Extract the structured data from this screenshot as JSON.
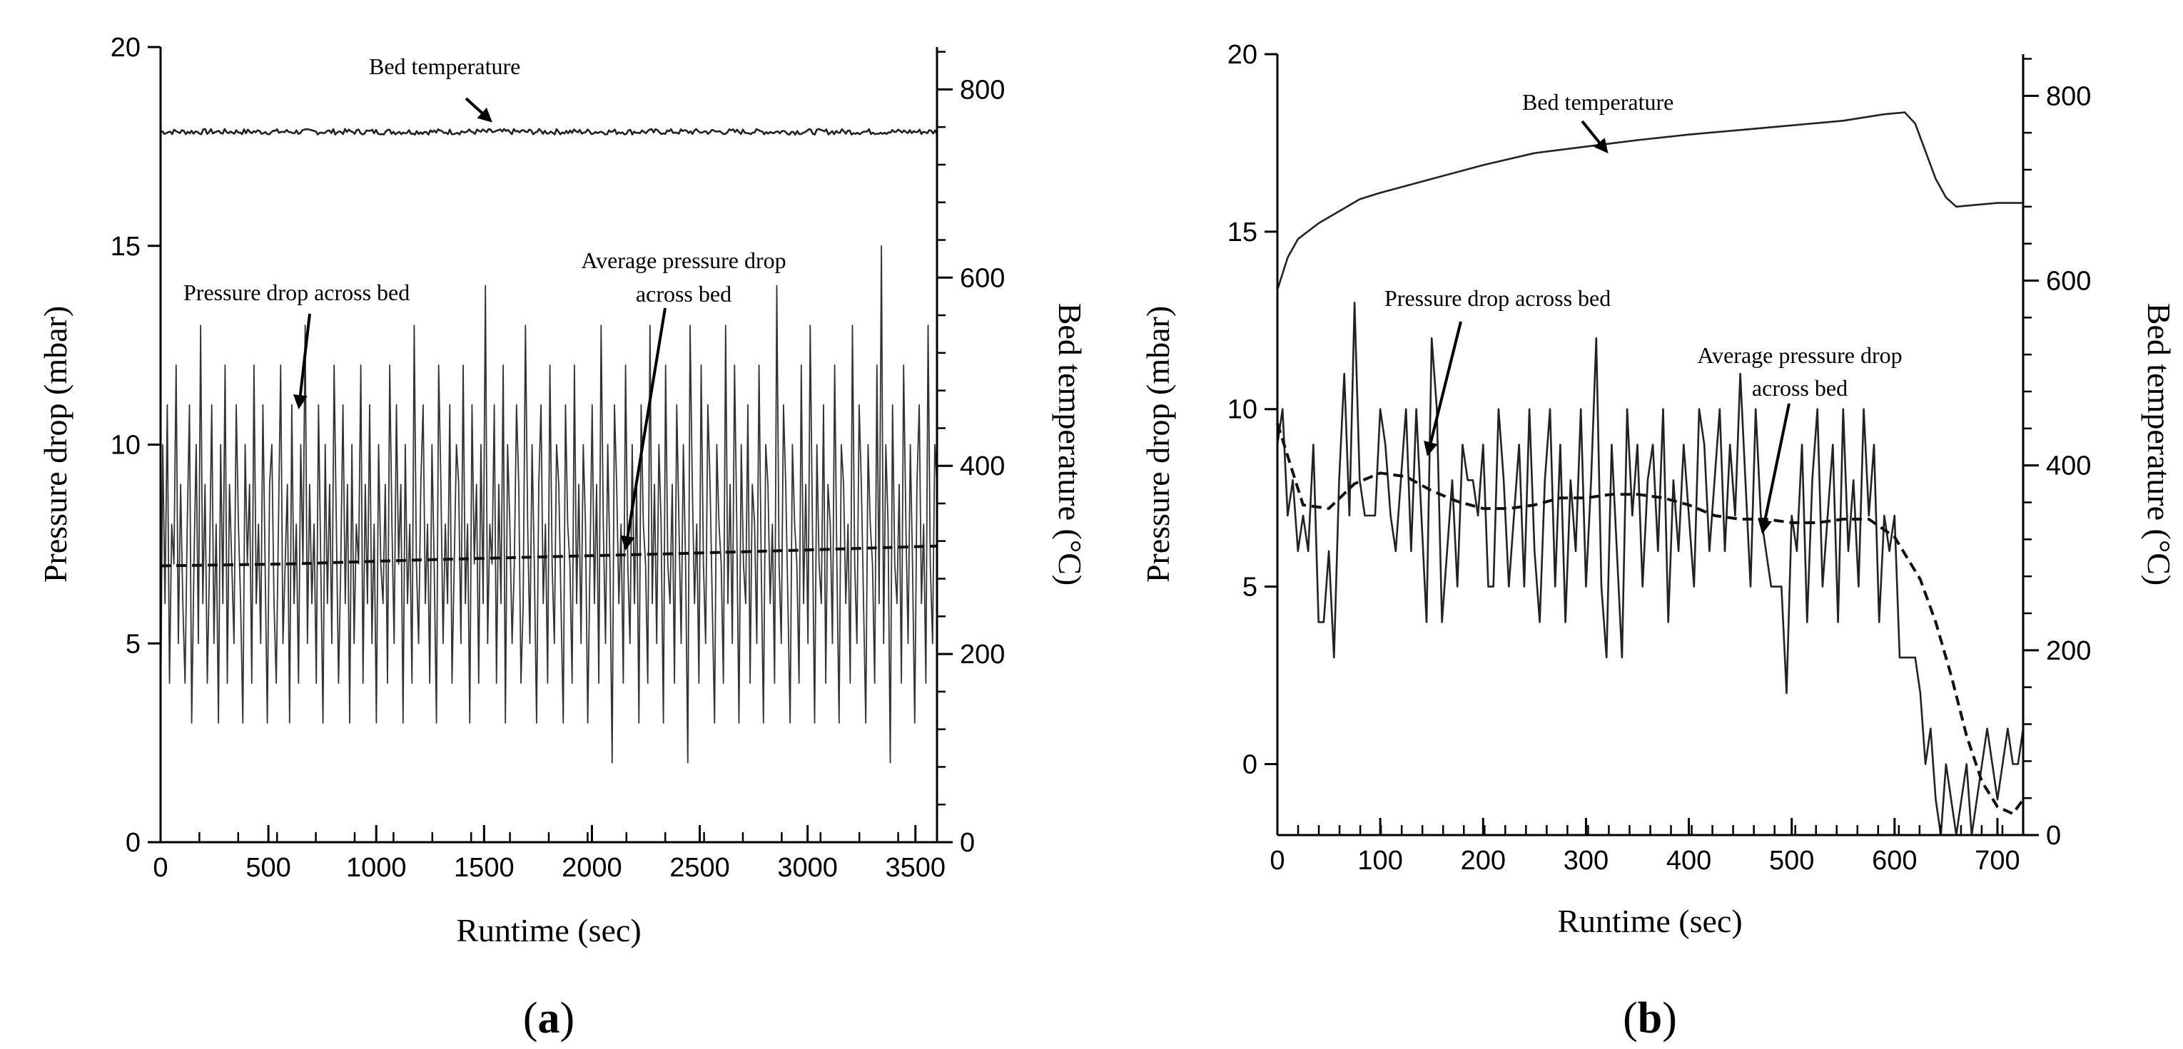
{
  "chart_data": [
    {
      "panel": "a",
      "panel_label": "a",
      "type": "line",
      "xlabel": "Runtime (sec)",
      "ylabel_left": "Pressure drop (mbar)",
      "ylabel_right": "Bed temperature (°C)",
      "xlim": [
        0,
        3600
      ],
      "ylim_left": [
        0,
        20
      ],
      "ylim_right": [
        0,
        845
      ],
      "xticks": [
        0,
        500,
        1000,
        1500,
        2000,
        2500,
        3000,
        3500
      ],
      "yticks_left": [
        0,
        5,
        10,
        15,
        20
      ],
      "yticks_right": [
        0,
        200,
        400,
        600,
        800
      ],
      "annotations": {
        "bed_temperature": "Bed temperature",
        "pressure_drop": "Pressure drop across bed",
        "average_line1": "Average pressure drop",
        "average_line2": "across bed"
      },
      "series": [
        {
          "name": "Bed temperature",
          "axis": "right",
          "style": "solid",
          "x": [
            0,
            3600
          ],
          "y": [
            755,
            755
          ],
          "noise_amplitude": 3
        },
        {
          "name": "Pressure drop across bed",
          "axis": "left",
          "style": "solid",
          "values_per_second": 0.5,
          "x_start": 0,
          "x_end": 3600,
          "mean": 7.2,
          "min": 2,
          "max": 15,
          "samples": [
            3,
            10,
            6,
            11,
            4,
            8,
            7,
            12,
            5,
            9,
            6,
            4,
            8,
            11,
            3,
            7,
            10,
            5,
            13,
            6,
            9,
            4,
            7,
            11,
            5,
            8,
            3,
            10,
            6,
            12,
            4,
            9,
            7,
            5,
            11,
            8,
            6,
            3,
            10,
            7,
            9,
            4,
            12,
            6,
            8,
            5,
            11,
            7,
            3,
            9,
            10,
            6,
            4,
            8,
            12,
            5,
            7,
            9,
            3,
            11,
            6,
            8,
            4,
            10,
            7,
            13,
            5,
            9,
            6,
            8,
            4,
            11,
            7,
            3,
            10,
            6,
            9,
            5,
            12,
            8,
            4,
            7,
            11,
            6,
            9,
            3,
            10,
            5,
            8,
            7,
            12,
            4,
            9,
            6,
            11,
            5,
            8,
            3,
            10,
            7,
            6,
            9,
            4,
            12,
            8,
            5,
            11,
            7,
            9,
            3,
            10,
            6,
            8,
            4,
            13,
            7,
            5,
            9,
            11,
            6,
            8,
            4,
            10,
            7,
            3,
            12,
            9,
            5,
            8,
            6,
            11,
            4,
            7,
            10,
            9,
            5,
            12,
            6,
            8,
            3,
            11,
            7,
            9,
            4,
            10,
            6,
            14,
            5,
            8,
            7,
            11,
            4,
            9,
            6,
            12,
            3,
            10,
            8,
            5,
            7,
            11,
            9,
            4,
            6,
            13,
            8,
            5,
            10,
            7,
            3,
            9,
            11,
            6,
            8,
            4,
            12,
            7,
            5,
            10,
            9,
            6,
            3,
            11,
            8,
            7,
            4,
            12,
            6,
            9,
            5,
            10,
            8,
            3,
            7,
            11,
            6,
            9,
            4,
            13,
            8,
            5,
            10,
            7,
            2,
            11,
            9,
            6,
            8,
            4,
            12,
            7,
            5,
            10,
            6,
            9,
            3,
            11,
            8,
            7,
            4,
            13,
            6,
            9,
            5,
            10,
            8,
            3,
            12,
            7,
            6,
            9,
            4,
            11,
            8,
            5,
            10,
            7,
            2,
            13,
            9,
            6,
            8,
            4,
            12,
            7,
            5,
            11,
            9,
            6,
            3,
            10,
            8,
            7,
            4,
            13,
            6,
            9,
            5,
            12,
            8,
            3,
            10,
            7,
            6,
            11,
            4,
            9,
            8,
            5,
            12,
            7,
            3,
            10,
            9,
            6,
            8,
            4,
            14,
            7,
            5,
            11,
            9,
            6,
            3,
            10,
            8,
            7,
            4,
            12,
            6,
            9,
            5,
            13,
            8,
            3,
            10,
            7,
            6,
            11,
            4,
            9,
            8,
            5,
            12,
            7,
            3,
            10,
            9,
            6,
            8,
            4,
            13,
            7,
            5,
            11,
            9,
            6,
            3,
            10,
            8,
            7,
            4,
            12,
            6,
            15,
            5,
            10,
            8,
            2,
            11,
            7,
            6,
            9,
            4,
            12,
            8,
            5,
            10,
            7,
            3,
            9,
            11,
            6,
            8,
            4,
            13,
            7,
            5,
            10,
            9
          ]
        },
        {
          "name": "Average pressure drop across bed",
          "axis": "left",
          "style": "dashed",
          "x": [
            0,
            600,
            1200,
            1800,
            2400,
            3000,
            3600
          ],
          "y": [
            6.95,
            7.0,
            7.1,
            7.18,
            7.26,
            7.35,
            7.45
          ]
        }
      ]
    },
    {
      "panel": "b",
      "panel_label": "b",
      "type": "line",
      "xlabel": "Runtime (sec)",
      "ylabel_left": "Pressure drop (mbar)",
      "ylabel_right": "Bed temperature (°C)",
      "xlim": [
        0,
        725
      ],
      "ylim_left": [
        -2,
        20
      ],
      "ylim_right": [
        0,
        845
      ],
      "xticks": [
        0,
        100,
        200,
        300,
        400,
        500,
        600,
        700
      ],
      "yticks_left": [
        0,
        5,
        10,
        15,
        20
      ],
      "yticks_right": [
        0,
        200,
        400,
        600,
        800
      ],
      "annotations": {
        "bed_temperature": "Bed temperature",
        "pressure_drop": "Pressure drop across bed",
        "average_line1": "Average pressure drop",
        "average_line2": "across bed"
      },
      "series": [
        {
          "name": "Bed temperature",
          "axis": "right",
          "style": "solid",
          "x": [
            0,
            10,
            20,
            40,
            60,
            80,
            100,
            150,
            200,
            250,
            300,
            350,
            400,
            450,
            500,
            550,
            590,
            610,
            620,
            630,
            640,
            650,
            660,
            680,
            700,
            725
          ],
          "y": [
            590,
            625,
            645,
            662,
            675,
            688,
            695,
            710,
            725,
            738,
            745,
            752,
            758,
            763,
            768,
            773,
            780,
            782,
            770,
            740,
            710,
            690,
            680,
            682,
            684,
            684
          ]
        },
        {
          "name": "Pressure drop across bed",
          "axis": "left",
          "style": "solid",
          "x": [
            0,
            5,
            10,
            15,
            20,
            25,
            30,
            35,
            40,
            45,
            50,
            55,
            60,
            65,
            70,
            75,
            80,
            85,
            90,
            95,
            100,
            105,
            110,
            115,
            120,
            125,
            130,
            135,
            140,
            145,
            150,
            155,
            160,
            165,
            170,
            175,
            180,
            185,
            190,
            195,
            200,
            205,
            210,
            215,
            220,
            225,
            230,
            235,
            240,
            245,
            250,
            255,
            260,
            265,
            270,
            275,
            280,
            285,
            290,
            295,
            300,
            305,
            310,
            315,
            320,
            325,
            330,
            335,
            340,
            345,
            350,
            355,
            360,
            365,
            370,
            375,
            380,
            385,
            390,
            395,
            400,
            405,
            410,
            415,
            420,
            425,
            430,
            435,
            440,
            445,
            450,
            455,
            460,
            465,
            470,
            475,
            480,
            485,
            490,
            495,
            500,
            505,
            510,
            515,
            520,
            525,
            530,
            535,
            540,
            545,
            550,
            555,
            560,
            565,
            570,
            575,
            580,
            585,
            590,
            595,
            600,
            605,
            610,
            615,
            620,
            625,
            630,
            635,
            640,
            645,
            650,
            655,
            660,
            665,
            670,
            675,
            680,
            685,
            690,
            695,
            700,
            705,
            710,
            715,
            720,
            725
          ],
          "y": [
            9,
            10,
            7,
            8,
            6,
            7,
            6,
            9,
            4,
            4,
            6,
            3,
            8,
            11,
            7,
            13,
            8,
            7,
            7,
            7,
            10,
            9,
            7,
            6,
            8,
            10,
            6,
            10,
            7,
            4,
            12,
            10,
            4,
            6,
            8,
            5,
            9,
            8,
            8,
            7,
            9,
            5,
            5,
            10,
            8,
            5,
            7,
            9,
            5,
            10,
            6,
            4,
            8,
            10,
            5,
            9,
            4,
            8,
            6,
            10,
            5,
            8,
            12,
            5,
            3,
            9,
            6,
            3,
            10,
            7,
            9,
            5,
            8,
            9,
            6,
            10,
            4,
            8,
            6,
            9,
            7,
            5,
            10,
            9,
            6,
            8,
            10,
            6,
            9,
            7,
            11,
            8,
            5,
            10,
            7,
            6,
            5,
            5,
            5,
            2,
            7,
            6,
            9,
            4,
            8,
            10,
            5,
            7,
            9,
            4,
            10,
            6,
            8,
            5,
            10,
            7,
            9,
            4,
            7,
            6,
            7,
            3,
            3,
            3,
            3,
            2,
            0,
            1,
            -1,
            -2,
            0,
            -1,
            -2,
            -1,
            0,
            -2,
            -1,
            0,
            1,
            0,
            -1,
            0,
            1,
            0,
            0,
            1
          ],
          "note": "sampled values estimated from the figure"
        },
        {
          "name": "Average pressure drop across bed",
          "axis": "left",
          "style": "dashed",
          "x": [
            0,
            25,
            50,
            75,
            100,
            125,
            150,
            175,
            200,
            225,
            250,
            275,
            300,
            325,
            350,
            375,
            400,
            425,
            450,
            475,
            500,
            525,
            550,
            575,
            600,
            625,
            640,
            655,
            670,
            685,
            700,
            715,
            725
          ],
          "y": [
            9.6,
            7.3,
            7.2,
            7.9,
            8.2,
            8.1,
            7.7,
            7.4,
            7.2,
            7.2,
            7.3,
            7.5,
            7.5,
            7.6,
            7.6,
            7.5,
            7.3,
            7.0,
            6.9,
            6.9,
            6.8,
            6.8,
            6.9,
            6.9,
            6.4,
            5.2,
            4.0,
            2.5,
            0.8,
            -0.5,
            -1.2,
            -1.4,
            -1.0
          ]
        }
      ]
    }
  ]
}
